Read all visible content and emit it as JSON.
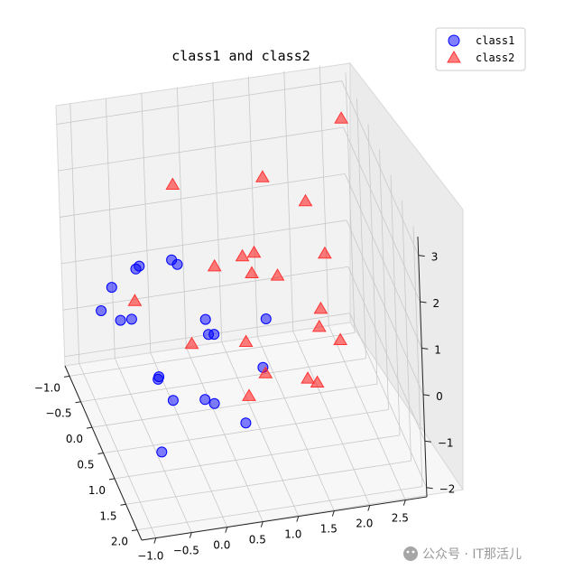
{
  "chart_data": {
    "type": "scatter",
    "title": "class1 and class2",
    "xlabel": "",
    "ylabel": "",
    "zlabel": "",
    "grid": true,
    "legend_position": "top-right",
    "x_ticks": [
      "−1.0",
      "−0.5",
      "0.0",
      "0.5",
      "1.0",
      "1.5",
      "2.0",
      "2.5"
    ],
    "y_ticks": [
      "−1.0",
      "−0.5",
      "0.0",
      "0.5",
      "1.0",
      "1.5",
      "2.0"
    ],
    "z_ticks": [
      "−2",
      "−1",
      "0",
      "1",
      "2",
      "3"
    ],
    "series": [
      {
        "name": "class1",
        "marker": "circle",
        "color": "#0000ff",
        "points": [
          {
            "x": -0.3,
            "y": 1.0,
            "z": 2.3
          },
          {
            "x": -0.25,
            "y": 1.1,
            "z": 2.3
          },
          {
            "x": -0.6,
            "y": 0.3,
            "z": 1.4
          },
          {
            "x": -0.55,
            "y": 0.3,
            "z": 1.45
          },
          {
            "x": -0.8,
            "y": -0.2,
            "z": 0.5
          },
          {
            "x": -0.9,
            "y": -0.4,
            "z": -0.2
          },
          {
            "x": -0.45,
            "y": -0.5,
            "z": -0.6
          },
          {
            "x": -0.75,
            "y": 0.0,
            "z": 0.0
          },
          {
            "x": 0.0,
            "y": 1.5,
            "z": 1.5
          },
          {
            "x": 0.7,
            "y": 2.0,
            "z": 1.9
          },
          {
            "x": 0.2,
            "y": 1.2,
            "z": 0.8
          },
          {
            "x": 0.15,
            "y": 1.1,
            "z": 0.7
          },
          {
            "x": 0.75,
            "y": 1.6,
            "z": 0.4
          },
          {
            "x": -0.4,
            "y": 0.5,
            "z": -0.8
          },
          {
            "x": -0.3,
            "y": 0.2,
            "z": -1.1
          },
          {
            "x": -0.2,
            "y": 0.5,
            "z": -1.3
          },
          {
            "x": 0.1,
            "y": 1.0,
            "z": -0.8
          },
          {
            "x": 0.2,
            "y": 1.1,
            "z": -0.8
          },
          {
            "x": 0.6,
            "y": 1.2,
            "z": -1.2
          },
          {
            "x": -0.5,
            "y": 0.9,
            "z": -1.9
          }
        ]
      },
      {
        "name": "class2",
        "marker": "triangle",
        "color": "#ff0000",
        "points": [
          {
            "x": 0.1,
            "y": -0.2,
            "z": 2.5
          },
          {
            "x": 1.3,
            "y": 0.0,
            "z": 2.6
          },
          {
            "x": 2.6,
            "y": -0.6,
            "z": 2.9
          },
          {
            "x": 1.8,
            "y": 0.3,
            "z": 2.3
          },
          {
            "x": 1.0,
            "y": 0.5,
            "z": 1.6
          },
          {
            "x": 0.85,
            "y": 0.45,
            "z": 1.5
          },
          {
            "x": 0.5,
            "y": 0.3,
            "z": 1.2
          },
          {
            "x": 1.2,
            "y": 0.9,
            "z": 1.5
          },
          {
            "x": 0.9,
            "y": 0.7,
            "z": 1.4
          },
          {
            "x": 1.9,
            "y": 0.8,
            "z": 1.7
          },
          {
            "x": 1.7,
            "y": 1.2,
            "z": 1.0
          },
          {
            "x": -0.6,
            "y": 0.2,
            "z": 0.6
          },
          {
            "x": 0.0,
            "y": 0.8,
            "z": 0.2
          },
          {
            "x": 0.7,
            "y": 1.0,
            "z": 0.3
          },
          {
            "x": 0.9,
            "y": 1.2,
            "z": -0.2
          },
          {
            "x": 0.6,
            "y": 1.4,
            "z": -0.4
          },
          {
            "x": 1.7,
            "y": 1.1,
            "z": 0.5
          },
          {
            "x": 1.9,
            "y": 1.4,
            "z": 0.5
          },
          {
            "x": 1.4,
            "y": 1.5,
            "z": -0.1
          },
          {
            "x": 1.5,
            "y": 1.6,
            "z": -0.1
          }
        ]
      }
    ]
  },
  "watermark": {
    "text": "公众号 · IT那活儿"
  }
}
